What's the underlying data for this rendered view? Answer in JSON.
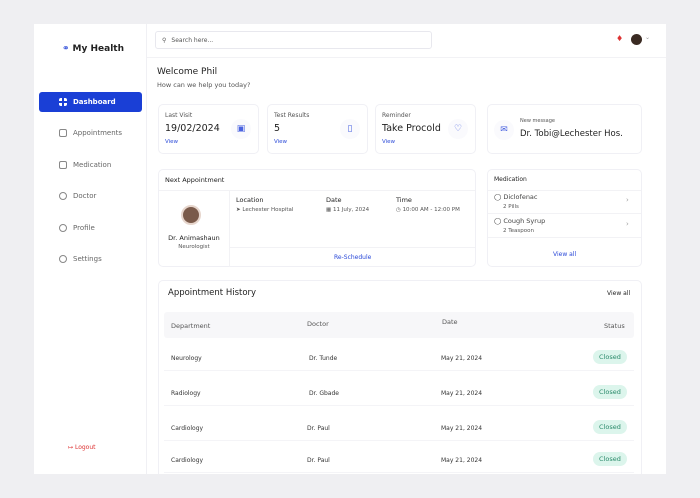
{
  "app": {
    "name": "My Health"
  },
  "sidebar": {
    "items": [
      {
        "label": "Dashboard",
        "icon": "grid-icon",
        "active": true
      },
      {
        "label": "Appointments",
        "icon": "calendar-icon"
      },
      {
        "label": "Medication",
        "icon": "pill-icon"
      },
      {
        "label": "Doctor",
        "icon": "user-icon"
      },
      {
        "label": "Profile",
        "icon": "profile-icon"
      },
      {
        "label": "Settings",
        "icon": "gear-icon"
      }
    ],
    "logout": "Logout"
  },
  "search": {
    "placeholder": "Search here..."
  },
  "welcome": {
    "title": "Welcome Phil",
    "subtitle": "How can we help you today?"
  },
  "stats": [
    {
      "label": "Last Visit",
      "value": "19/02/2024",
      "link": "View"
    },
    {
      "label": "Test Results",
      "value": "5",
      "link": "View"
    },
    {
      "label": "Reminder",
      "value": "Take Procold",
      "link": "View"
    }
  ],
  "message": {
    "label": "New message",
    "value": "Dr. Tobi@Lechester Hos."
  },
  "appointment": {
    "title": "Next Appointment",
    "doctor": "Dr. Animashaun",
    "specialty": "Neurologist",
    "location_label": "Location",
    "location": "Lechester Hospital",
    "date_label": "Date",
    "date": "11 July, 2024",
    "time_label": "Time",
    "time": "10:00 AM  - 12:00 PM",
    "action": "Re-Schedule"
  },
  "medication": {
    "title": "Medication",
    "items": [
      {
        "name": "Diclofenac",
        "dose": "2 Pills"
      },
      {
        "name": "Cough Syrup",
        "dose": "2 Teaspoon"
      }
    ],
    "view_all": "View all"
  },
  "history": {
    "title": "Appointment History",
    "view_all": "View all",
    "columns": [
      "Department",
      "Doctor",
      "Date",
      "Status"
    ],
    "rows": [
      {
        "department": "Neurology",
        "doctor": "Dr. Tunde",
        "date": "May 21, 2024",
        "status": "Closed"
      },
      {
        "department": "Radiology",
        "doctor": "Dr. Gbade",
        "date": "May 21, 2024",
        "status": "Closed"
      },
      {
        "department": "Cardiology",
        "doctor": "Dr. Paul",
        "date": "May 21, 2024",
        "status": "Closed"
      },
      {
        "department": "Cardiology",
        "doctor": "Dr. Paul",
        "date": "May 21, 2024",
        "status": "Closed"
      }
    ]
  },
  "colors": {
    "accent": "#1a3fd6",
    "status_closed_bg": "#dcf5ec",
    "logout": "#dd3333"
  }
}
